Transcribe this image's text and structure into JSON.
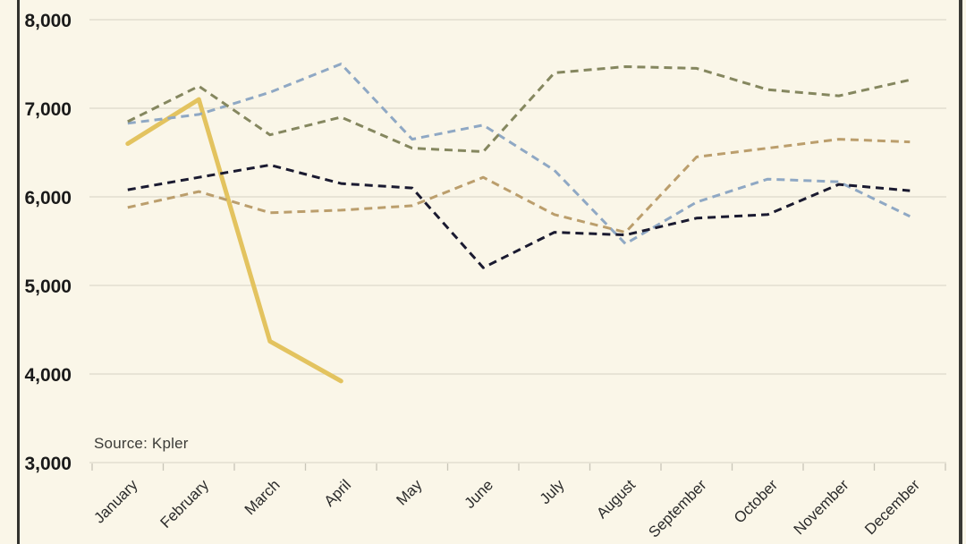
{
  "chart": {
    "source_caption": "Source: Kpler",
    "background_color": "#FAF6E8",
    "gridline_color": "#DDDACB",
    "tick_color": "#C9C6B8",
    "border_color": "#32322E",
    "ylabel_color": "#1A1A1A",
    "xlabel_color": "#2B2B2B"
  },
  "chart_data": {
    "type": "line",
    "title": "",
    "xlabel": "",
    "ylabel": "",
    "source": "Source: Kpler",
    "grid": true,
    "legend": "none",
    "ylim": [
      3000,
      8000
    ],
    "yticks": [
      3000,
      4000,
      5000,
      6000,
      7000,
      8000
    ],
    "ytick_labels": [
      "3,000",
      "4,000",
      "5,000",
      "6,000",
      "7,000",
      "8,000"
    ],
    "categories": [
      "January",
      "February",
      "March",
      "April",
      "May",
      "June",
      "July",
      "August",
      "September",
      "October",
      "November",
      "December"
    ],
    "series": [
      {
        "name": "gold-solid-line",
        "style": "solid",
        "color": "#E3C35F",
        "width": 5,
        "values": [
          6600,
          7100,
          4370,
          3920,
          null,
          null,
          null,
          null,
          null,
          null,
          null,
          null
        ]
      },
      {
        "name": "blue-dashed-line",
        "style": "dashed",
        "color": "#8FA8C4",
        "width": 3,
        "values": [
          6830,
          6930,
          7180,
          7500,
          6650,
          6810,
          6300,
          5470,
          5940,
          6200,
          6170,
          5780
        ]
      },
      {
        "name": "olive-dashed-line",
        "style": "dashed",
        "color": "#85875F",
        "width": 3,
        "values": [
          6850,
          7250,
          6700,
          6900,
          6550,
          6510,
          7400,
          7470,
          7450,
          7210,
          7140,
          7320
        ]
      },
      {
        "name": "navy-dashed-line",
        "style": "dashed",
        "color": "#1A1A30",
        "width": 3,
        "values": [
          6080,
          6220,
          6360,
          6150,
          6100,
          5200,
          5600,
          5570,
          5760,
          5800,
          6140,
          6070
        ]
      },
      {
        "name": "tan-dashed-line",
        "style": "dashed",
        "color": "#BB9E6C",
        "width": 3,
        "values": [
          5880,
          6060,
          5820,
          5850,
          5900,
          6220,
          5800,
          5600,
          6450,
          6550,
          6650,
          6620
        ]
      }
    ]
  }
}
